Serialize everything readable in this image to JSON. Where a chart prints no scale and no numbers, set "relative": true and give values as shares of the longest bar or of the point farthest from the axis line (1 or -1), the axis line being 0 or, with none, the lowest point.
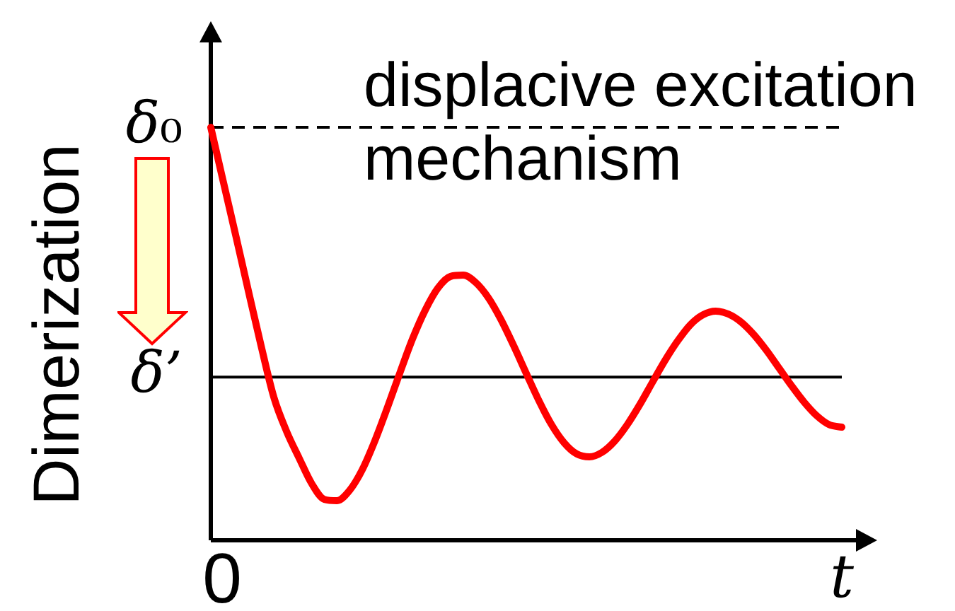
{
  "chart_data": {
    "type": "line",
    "title": "displacive excitation mechanism",
    "xlabel": "t",
    "ylabel": "Dimerization",
    "relative": true,
    "marker": "none",
    "categories": [
      null,
      null,
      null,
      null,
      null,
      null,
      null,
      null,
      null,
      null,
      null,
      null,
      null,
      null,
      null,
      null,
      null,
      null,
      null,
      null,
      null,
      null,
      null,
      null,
      null,
      null,
      null,
      null,
      null,
      null,
      null,
      null,
      null,
      null,
      null,
      null,
      null,
      null,
      null,
      null,
      null,
      null,
      null,
      null,
      null,
      null,
      null,
      null,
      null,
      null,
      null
    ],
    "series": [
      {
        "color": "#ff0000",
        "values": [
          1,
          0.867,
          0.735,
          0.601,
          0.469,
          0.346,
          0.264,
          0.199,
          0.137,
          0.099,
          0.096,
          0.121,
          0.171,
          0.241,
          0.322,
          0.407,
          0.489,
          0.558,
          0.611,
          0.639,
          0.642,
          0.624,
          0.587,
          0.534,
          0.471,
          0.404,
          0.338,
          0.28,
          0.236,
          0.209,
          0.202,
          0.213,
          0.24,
          0.28,
          0.329,
          0.383,
          0.436,
          0.483,
          0.522,
          0.546,
          0.555,
          0.548,
          0.529,
          0.499,
          0.461,
          0.418,
          0.375,
          0.335,
          0.302,
          0.28,
          0.274
        ]
      }
    ],
    "ref_lines": [
      {
        "axis": "y",
        "value": 1,
        "label": "δ₀",
        "color": "#000000",
        "line_style": "dashed"
      },
      {
        "axis": "y",
        "value": 0.395,
        "label": "δ’",
        "color": "#000000",
        "line_style": "solid"
      }
    ],
    "annotations": [
      "0"
    ]
  }
}
